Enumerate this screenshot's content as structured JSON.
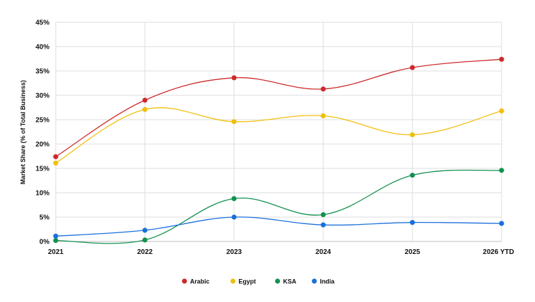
{
  "chart_data": {
    "type": "line",
    "title": "",
    "xlabel": "",
    "ylabel": "Market Share (% of Total Business)",
    "categories": [
      "2021",
      "2022",
      "2023",
      "2024",
      "2025",
      "2026 YTD"
    ],
    "yticks": [
      "0%",
      "5%",
      "10%",
      "15%",
      "20%",
      "25%",
      "30%",
      "35%",
      "40%",
      "45%"
    ],
    "ylim": [
      0,
      45
    ],
    "grid": true,
    "legend_position": "bottom",
    "series": [
      {
        "name": "Arabic",
        "color": "#cc2a2a",
        "values": [
          17.4,
          29.0,
          33.6,
          31.3,
          35.7,
          37.4
        ]
      },
      {
        "name": "Egypt",
        "color": "#f0bf0c",
        "values": [
          16.1,
          27.1,
          24.6,
          25.8,
          21.9,
          26.8
        ]
      },
      {
        "name": "KSA",
        "color": "#13904f",
        "values": [
          0.2,
          0.3,
          8.8,
          5.5,
          13.6,
          14.6
        ]
      },
      {
        "name": "India",
        "color": "#1a6fdc",
        "values": [
          1.1,
          2.3,
          5.0,
          3.4,
          3.9,
          3.7
        ]
      }
    ]
  }
}
